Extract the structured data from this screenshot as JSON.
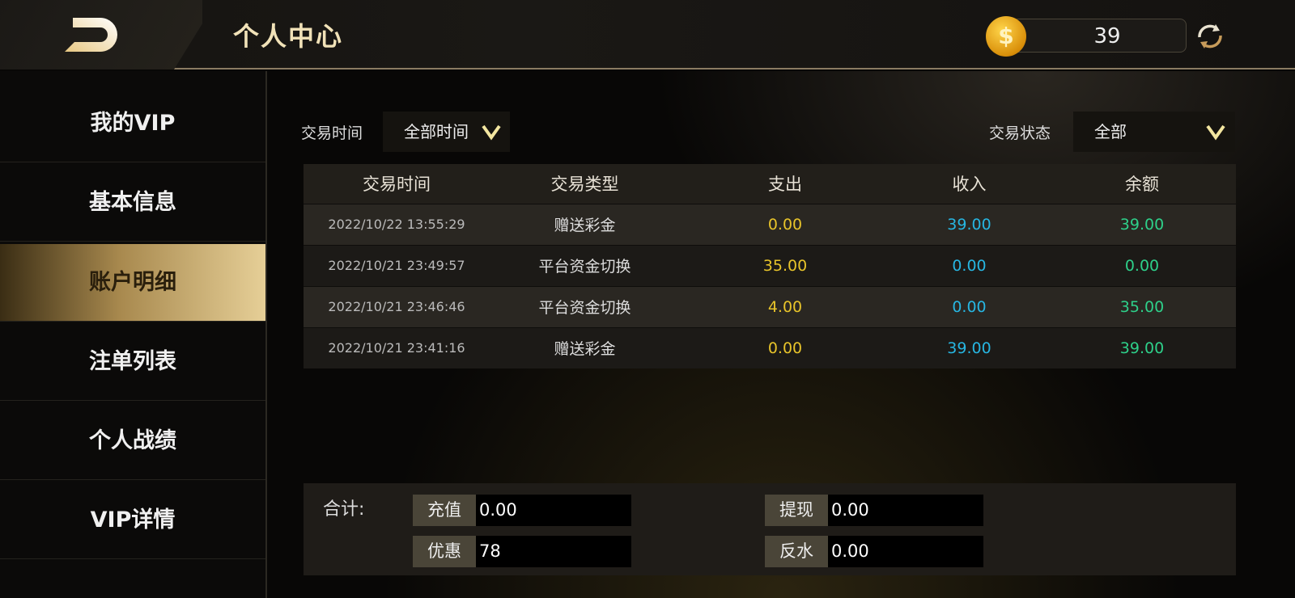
{
  "header": {
    "title": "个人中心",
    "balance": "39",
    "coin_icon": "$"
  },
  "sidebar": {
    "items": [
      {
        "label": "我的VIP"
      },
      {
        "label": "基本信息"
      },
      {
        "label": "账户明细",
        "active": true
      },
      {
        "label": "注单列表"
      },
      {
        "label": "个人战绩"
      },
      {
        "label": "VIP详情"
      }
    ]
  },
  "filters": {
    "time_label": "交易时间",
    "time_value": "全部时间",
    "status_label": "交易状态",
    "status_value": "全部"
  },
  "table": {
    "columns": [
      "交易时间",
      "交易类型",
      "支出",
      "收入",
      "余额"
    ],
    "rows": [
      [
        "2022/10/22 13:55:29",
        "赠送彩金",
        "0.00",
        "39.00",
        "39.00"
      ],
      [
        "2022/10/21 23:49:57",
        "平台资金切换",
        "35.00",
        "0.00",
        "0.00"
      ],
      [
        "2022/10/21 23:46:46",
        "平台资金切换",
        "4.00",
        "0.00",
        "35.00"
      ],
      [
        "2022/10/21 23:41:16",
        "赠送彩金",
        "0.00",
        "39.00",
        "39.00"
      ]
    ]
  },
  "summary": {
    "label": "合计:",
    "fields": [
      {
        "key": "充值",
        "value": "0.00"
      },
      {
        "key": "提现",
        "value": "0.00"
      },
      {
        "key": "优惠",
        "value": "78"
      },
      {
        "key": "反水",
        "value": "0.00"
      }
    ]
  },
  "colors": {
    "expense": "#e8c42a",
    "income": "#27b6e2",
    "balance": "#2ed08a",
    "accent": "#e6cf97"
  }
}
